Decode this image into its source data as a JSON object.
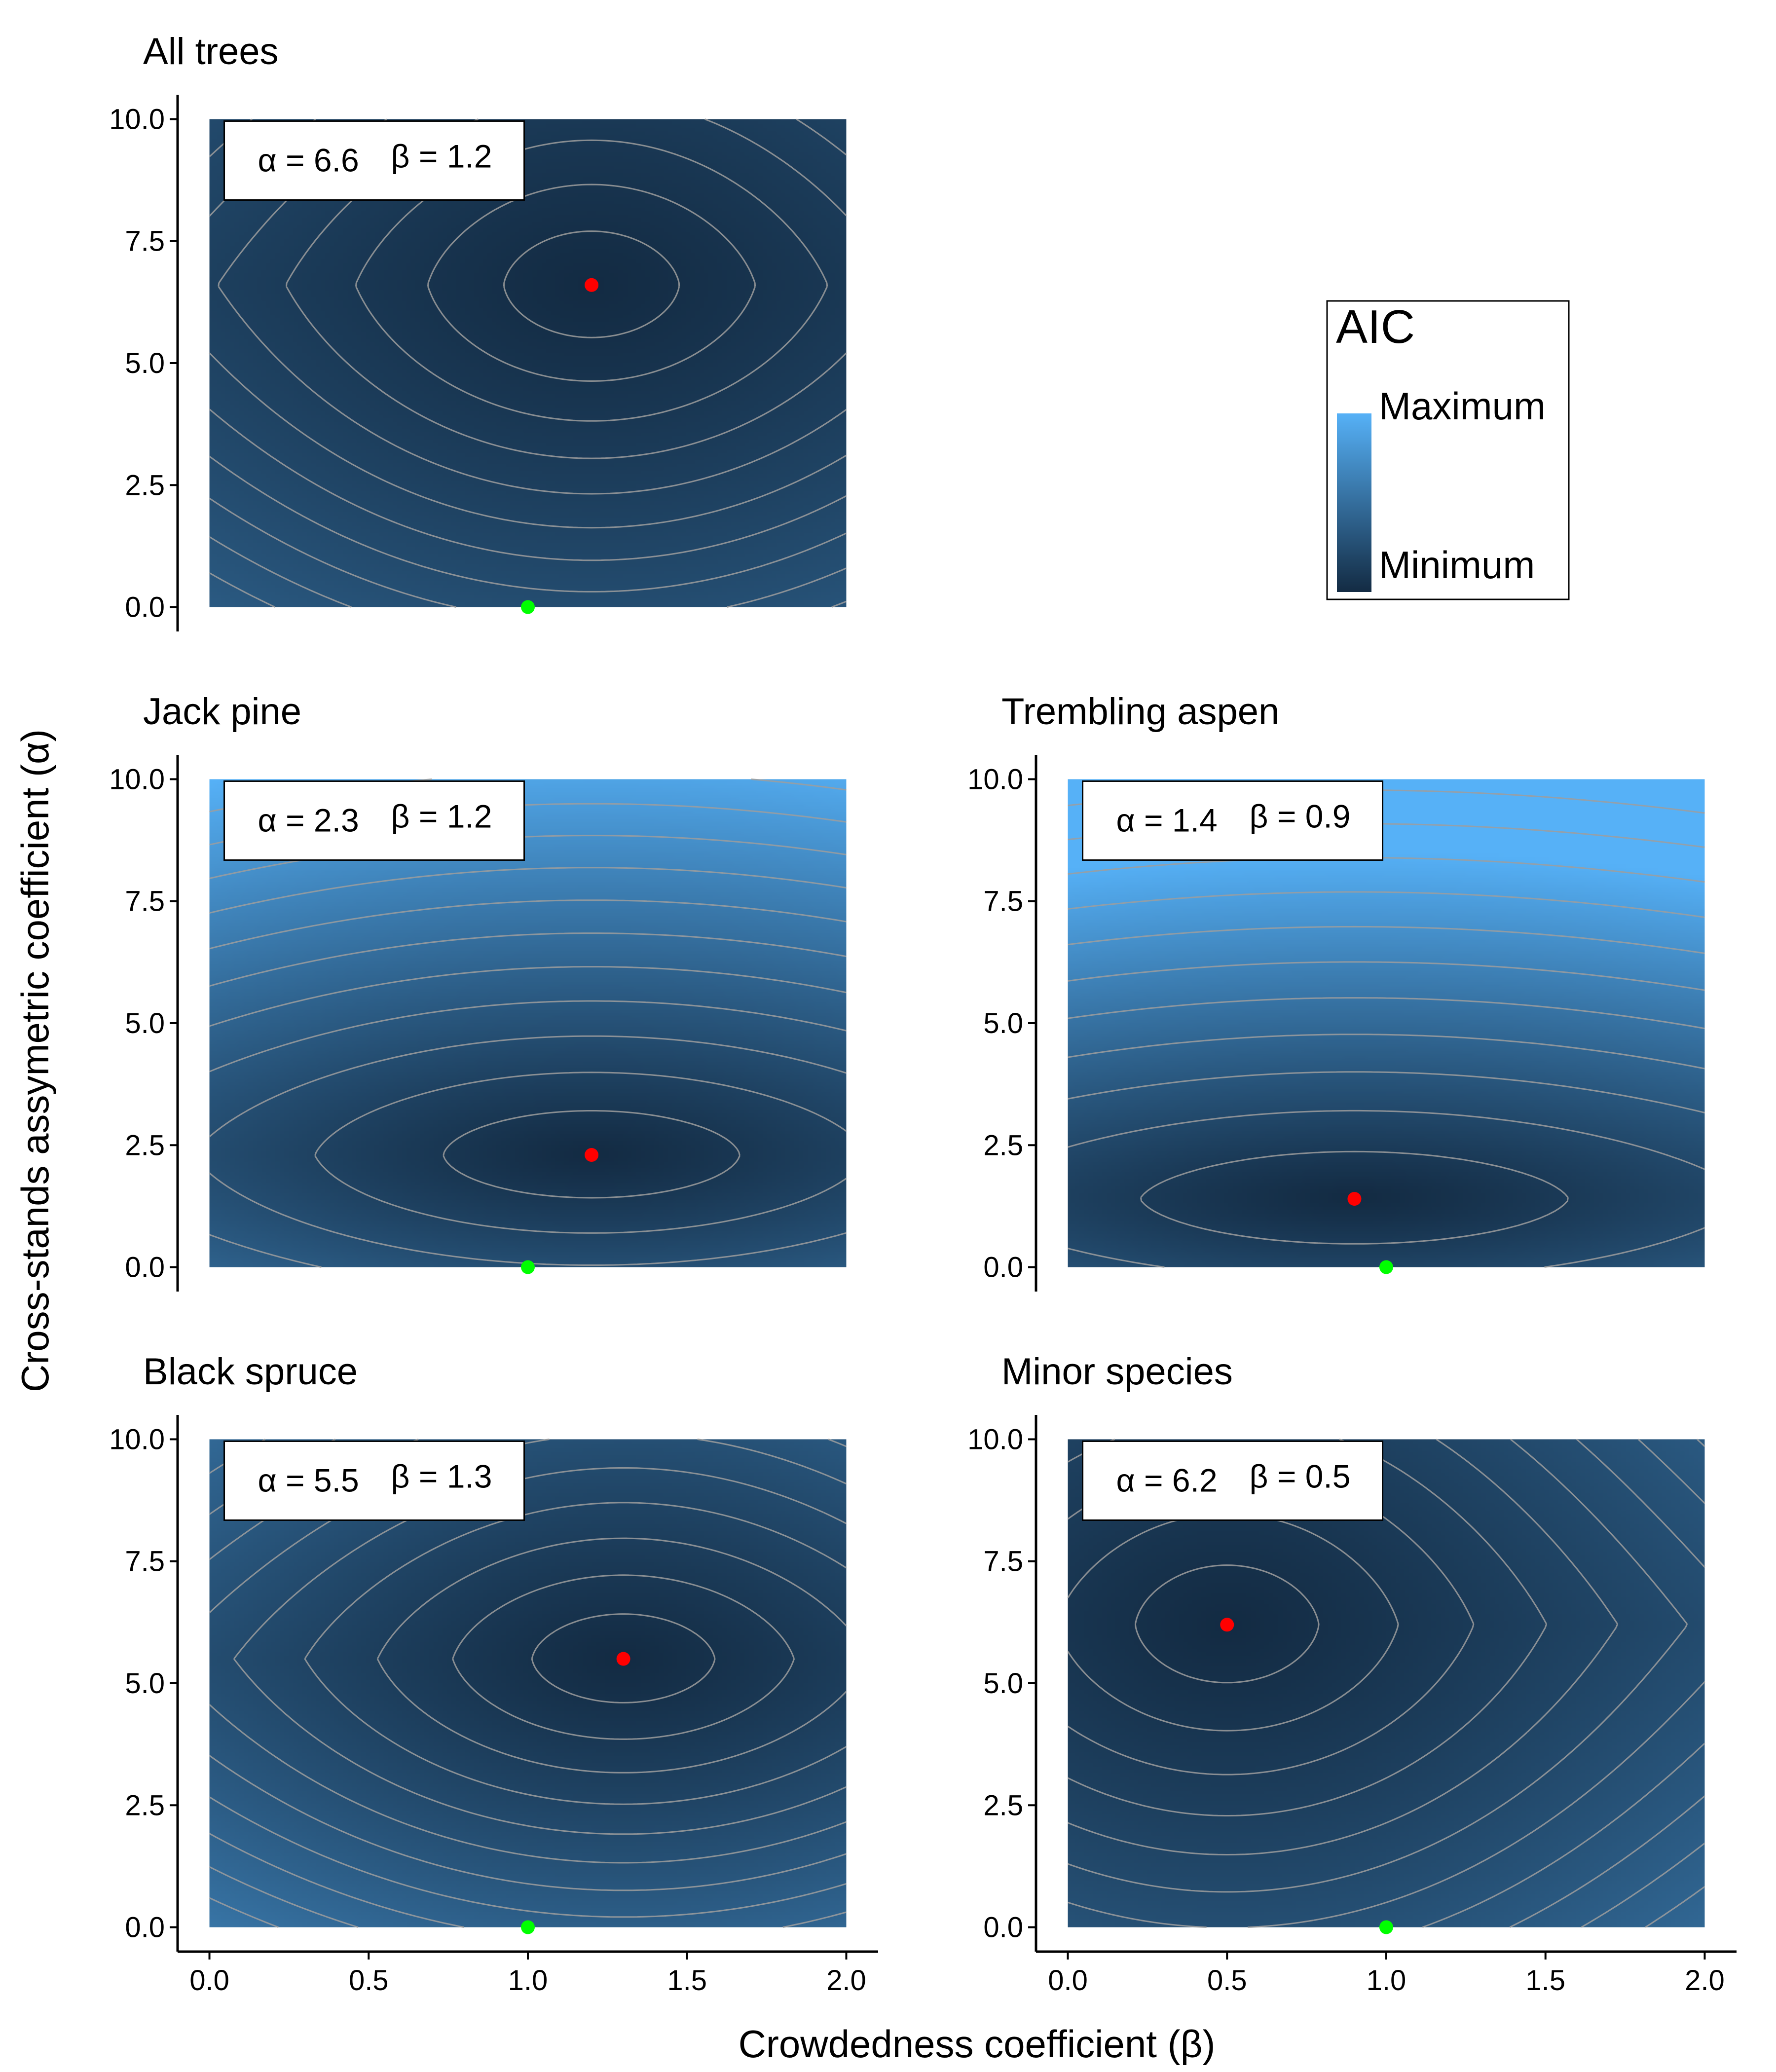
{
  "figure": {
    "xlabel": "Crowdedness coefficient (β)",
    "ylabel": "Cross-stands assymetric coefficient (α)"
  },
  "legend": {
    "title": "AIC",
    "max_label": "Maximum",
    "min_label": "Minimum",
    "placement": "top-right",
    "colors": {
      "max": "#56B1F7",
      "min": "#132B43"
    }
  },
  "colors": {
    "optimum_point": "#FF0000",
    "reference_point": "#00FF00",
    "contour": "#9E9E9E"
  },
  "chart_data": [
    {
      "type": "heatmap",
      "title": "All trees",
      "xlim": [
        0,
        2
      ],
      "ylim": [
        0,
        10
      ],
      "xticks": [
        "0.0",
        "0.5",
        "1.0",
        "1.5",
        "2.0"
      ],
      "yticks": [
        "0.0",
        "2.5",
        "5.0",
        "7.5",
        "10.0"
      ],
      "annotation": {
        "alpha_text": "α = 6.6",
        "beta_text": "β = 1.2"
      },
      "optimum": {
        "beta": 1.2,
        "alpha": 6.6
      },
      "reference": {
        "beta": 1.0,
        "alpha": 0.0
      },
      "model": {
        "ky": 5.2,
        "kx": 1.3,
        "cross": 0.9,
        "bright": 0.35
      }
    },
    {
      "type": "heatmap",
      "title": "Jack pine",
      "xlim": [
        0,
        2
      ],
      "ylim": [
        0,
        10
      ],
      "xticks": [
        "0.0",
        "0.5",
        "1.0",
        "1.5",
        "2.0"
      ],
      "yticks": [
        "0.0",
        "2.5",
        "5.0",
        "7.5",
        "10.0"
      ],
      "annotation": {
        "alpha_text": "α = 2.3",
        "beta_text": "β = 1.2"
      },
      "optimum": {
        "beta": 1.2,
        "alpha": 2.3
      },
      "reference": {
        "beta": 1.0,
        "alpha": 0.0
      },
      "model": {
        "ky": 3.5,
        "kx": 1.8,
        "cross": 0.6,
        "bright": 1.0
      }
    },
    {
      "type": "heatmap",
      "title": "Trembling aspen",
      "xlim": [
        0,
        2
      ],
      "ylim": [
        0,
        10
      ],
      "xticks": [
        "0.0",
        "0.5",
        "1.0",
        "1.5",
        "2.0"
      ],
      "yticks": [
        "0.0",
        "2.5",
        "5.0",
        "7.5",
        "10.0"
      ],
      "annotation": {
        "alpha_text": "α = 1.4",
        "beta_text": "β = 0.9"
      },
      "optimum": {
        "beta": 0.9,
        "alpha": 1.4
      },
      "reference": {
        "beta": 1.0,
        "alpha": 0.0
      },
      "model": {
        "ky": 2.3,
        "kx": 1.6,
        "cross": 0.6,
        "bright": 1.3
      }
    },
    {
      "type": "heatmap",
      "title": "Black spruce",
      "xlim": [
        0,
        2
      ],
      "ylim": [
        0,
        10
      ],
      "xticks": [
        "0.0",
        "0.5",
        "1.0",
        "1.5",
        "2.0"
      ],
      "yticks": [
        "0.0",
        "2.5",
        "5.0",
        "7.5",
        "10.0"
      ],
      "annotation": {
        "alpha_text": "α = 5.5",
        "beta_text": "β = 1.3"
      },
      "optimum": {
        "beta": 1.3,
        "alpha": 5.5
      },
      "reference": {
        "beta": 1.0,
        "alpha": 0.0
      },
      "model": {
        "ky": 4.8,
        "kx": 1.5,
        "cross": 0.9,
        "bright": 0.55
      }
    },
    {
      "type": "heatmap",
      "title": "Minor species",
      "xlim": [
        0,
        2
      ],
      "ylim": [
        0,
        10
      ],
      "xticks": [
        "0.0",
        "0.5",
        "1.0",
        "1.5",
        "2.0"
      ],
      "yticks": [
        "0.0",
        "2.5",
        "5.0",
        "7.5",
        "10.0"
      ],
      "annotation": {
        "alpha_text": "α = 6.2",
        "beta_text": "β = 0.5"
      },
      "optimum": {
        "beta": 0.5,
        "alpha": 6.2
      },
      "reference": {
        "beta": 1.0,
        "alpha": 0.0
      },
      "model": {
        "ky": 5.5,
        "kx": 1.3,
        "cross": 0.9,
        "bright": 0.45
      }
    }
  ]
}
